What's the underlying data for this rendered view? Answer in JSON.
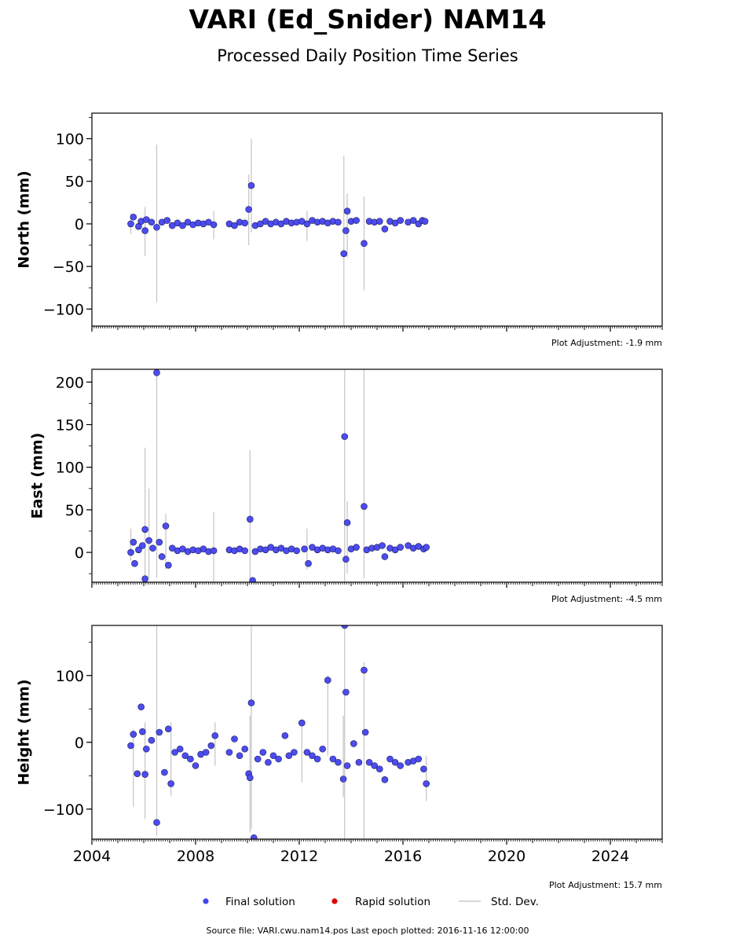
{
  "title": "VARI (Ed_Snider) NAM14",
  "subtitle": "Processed Daily Position Time Series",
  "footer": "Source file: VARI.cwu.nam14.pos  Last epoch plotted: 2016-11-16 12:00:00",
  "legend": {
    "placement": "bottom-center",
    "items": [
      {
        "label": "Final solution",
        "color": "#4444ee",
        "kind": "marker"
      },
      {
        "label": "Rapid solution",
        "color": "#dd0000",
        "kind": "marker"
      },
      {
        "label": "Std. Dev.",
        "color": "#cccccc",
        "kind": "line"
      }
    ]
  },
  "colors": {
    "final": "#4c4cf0",
    "edge": "#1a1a55",
    "stddev": "#c8c8c8"
  },
  "chart_data": [
    {
      "type": "scatter",
      "ylabel": "North (mm)",
      "xlim": [
        2004,
        2026
      ],
      "ylim": [
        -120,
        130
      ],
      "yticks": [
        100,
        50,
        0,
        -50,
        -100
      ],
      "note": "Plot Adjustment: -1.9 mm",
      "xtick_labels_shown": false,
      "series": [
        {
          "name": "Final solution",
          "points": [
            [
              2005.5,
              0
            ],
            [
              2005.6,
              8
            ],
            [
              2005.8,
              -3
            ],
            [
              2005.9,
              3
            ],
            [
              2006.05,
              -8
            ],
            [
              2006.1,
              5
            ],
            [
              2006.3,
              2
            ],
            [
              2006.5,
              -4
            ],
            [
              2006.7,
              2
            ],
            [
              2006.9,
              4
            ],
            [
              2007.1,
              -2
            ],
            [
              2007.3,
              1
            ],
            [
              2007.5,
              -2
            ],
            [
              2007.7,
              2
            ],
            [
              2007.9,
              -1
            ],
            [
              2008.1,
              1
            ],
            [
              2008.3,
              0
            ],
            [
              2008.5,
              2
            ],
            [
              2008.7,
              -1
            ],
            [
              2009.3,
              0
            ],
            [
              2009.5,
              -2
            ],
            [
              2009.7,
              2
            ],
            [
              2009.9,
              1
            ],
            [
              2010.05,
              17
            ],
            [
              2010.15,
              45
            ],
            [
              2010.3,
              -2
            ],
            [
              2010.5,
              0
            ],
            [
              2010.7,
              3
            ],
            [
              2010.9,
              0
            ],
            [
              2011.1,
              2
            ],
            [
              2011.3,
              0
            ],
            [
              2011.5,
              3
            ],
            [
              2011.7,
              1
            ],
            [
              2011.9,
              2
            ],
            [
              2012.1,
              3
            ],
            [
              2012.3,
              0
            ],
            [
              2012.5,
              4
            ],
            [
              2012.7,
              2
            ],
            [
              2012.9,
              3
            ],
            [
              2013.1,
              1
            ],
            [
              2013.3,
              3
            ],
            [
              2013.5,
              2
            ],
            [
              2013.72,
              -35
            ],
            [
              2013.8,
              -8
            ],
            [
              2013.85,
              15
            ],
            [
              2014.0,
              3
            ],
            [
              2014.2,
              4
            ],
            [
              2014.5,
              -23
            ],
            [
              2014.7,
              3
            ],
            [
              2014.9,
              2
            ],
            [
              2015.1,
              3
            ],
            [
              2015.3,
              -6
            ],
            [
              2015.5,
              3
            ],
            [
              2015.7,
              1
            ],
            [
              2015.9,
              4
            ],
            [
              2016.2,
              2
            ],
            [
              2016.4,
              4
            ],
            [
              2016.6,
              0
            ],
            [
              2016.75,
              4
            ],
            [
              2016.85,
              3
            ]
          ]
        }
      ],
      "stddev_bars": [
        [
          2005.5,
          -12,
          12
        ],
        [
          2006.05,
          -38,
          20
        ],
        [
          2006.5,
          -92,
          93
        ],
        [
          2008.7,
          -18,
          15
        ],
        [
          2010.05,
          -25,
          58
        ],
        [
          2010.15,
          -10,
          100
        ],
        [
          2012.3,
          -20,
          15
        ],
        [
          2013.72,
          -120,
          80
        ],
        [
          2013.85,
          -40,
          36
        ],
        [
          2014.5,
          -78,
          32
        ]
      ]
    },
    {
      "type": "scatter",
      "ylabel": "East (mm)",
      "xlim": [
        2004,
        2026
      ],
      "ylim": [
        -35,
        215
      ],
      "yticks": [
        200,
        150,
        100,
        50,
        0
      ],
      "note": "Plot Adjustment: -4.5 mm",
      "xtick_labels_shown": false,
      "series": [
        {
          "name": "Final solution",
          "points": [
            [
              2005.5,
              0
            ],
            [
              2005.6,
              12
            ],
            [
              2005.65,
              -13
            ],
            [
              2005.8,
              3
            ],
            [
              2005.95,
              8
            ],
            [
              2006.05,
              27
            ],
            [
              2006.05,
              -31
            ],
            [
              2006.2,
              14
            ],
            [
              2006.35,
              5
            ],
            [
              2006.5,
              211
            ],
            [
              2006.6,
              12
            ],
            [
              2006.7,
              -5
            ],
            [
              2006.85,
              31
            ],
            [
              2006.95,
              -15
            ],
            [
              2007.1,
              5
            ],
            [
              2007.3,
              2
            ],
            [
              2007.5,
              4
            ],
            [
              2007.7,
              1
            ],
            [
              2007.9,
              3
            ],
            [
              2008.1,
              2
            ],
            [
              2008.3,
              4
            ],
            [
              2008.5,
              1
            ],
            [
              2008.7,
              2
            ],
            [
              2009.3,
              3
            ],
            [
              2009.5,
              2
            ],
            [
              2009.7,
              4
            ],
            [
              2009.9,
              2
            ],
            [
              2010.1,
              39
            ],
            [
              2010.2,
              -33
            ],
            [
              2010.3,
              1
            ],
            [
              2010.5,
              4
            ],
            [
              2010.7,
              3
            ],
            [
              2010.9,
              6
            ],
            [
              2011.1,
              3
            ],
            [
              2011.3,
              5
            ],
            [
              2011.5,
              2
            ],
            [
              2011.7,
              4
            ],
            [
              2011.9,
              2
            ],
            [
              2012.2,
              4
            ],
            [
              2012.35,
              -13
            ],
            [
              2012.5,
              6
            ],
            [
              2012.7,
              3
            ],
            [
              2012.9,
              5
            ],
            [
              2013.1,
              3
            ],
            [
              2013.3,
              4
            ],
            [
              2013.5,
              2
            ],
            [
              2013.75,
              136
            ],
            [
              2013.8,
              -8
            ],
            [
              2013.85,
              35
            ],
            [
              2014.0,
              4
            ],
            [
              2014.2,
              6
            ],
            [
              2014.5,
              54
            ],
            [
              2014.6,
              3
            ],
            [
              2014.8,
              5
            ],
            [
              2015.0,
              6
            ],
            [
              2015.2,
              8
            ],
            [
              2015.3,
              -5
            ],
            [
              2015.5,
              5
            ],
            [
              2015.7,
              3
            ],
            [
              2015.9,
              6
            ],
            [
              2016.2,
              8
            ],
            [
              2016.4,
              5
            ],
            [
              2016.6,
              7
            ],
            [
              2016.8,
              4
            ],
            [
              2016.9,
              6
            ]
          ]
        }
      ],
      "stddev_bars": [
        [
          2005.5,
          -10,
          28
        ],
        [
          2006.05,
          -35,
          123
        ],
        [
          2006.2,
          -30,
          75
        ],
        [
          2006.5,
          -30,
          215
        ],
        [
          2006.85,
          -20,
          45
        ],
        [
          2008.7,
          -35,
          47
        ],
        [
          2010.1,
          -30,
          120
        ],
        [
          2012.3,
          -20,
          28
        ],
        [
          2013.75,
          -35,
          215
        ],
        [
          2013.85,
          -25,
          60
        ],
        [
          2014.5,
          -30,
          215
        ]
      ]
    },
    {
      "type": "scatter",
      "ylabel": "Height (mm)",
      "xlim": [
        2004,
        2026
      ],
      "ylim": [
        -145,
        175
      ],
      "yticks": [
        100,
        0,
        -100
      ],
      "xticks": [
        2004,
        2008,
        2012,
        2016,
        2020,
        2024
      ],
      "note": "Plot Adjustment: 15.7 mm",
      "xtick_labels_shown": true,
      "series": [
        {
          "name": "Final solution",
          "points": [
            [
              2005.5,
              -5
            ],
            [
              2005.6,
              12
            ],
            [
              2005.75,
              -47
            ],
            [
              2005.9,
              53
            ],
            [
              2005.95,
              16
            ],
            [
              2006.05,
              -48
            ],
            [
              2006.1,
              -10
            ],
            [
              2006.3,
              3
            ],
            [
              2006.5,
              -120
            ],
            [
              2006.6,
              15
            ],
            [
              2006.8,
              -45
            ],
            [
              2006.95,
              20
            ],
            [
              2007.05,
              -62
            ],
            [
              2007.2,
              -15
            ],
            [
              2007.4,
              -10
            ],
            [
              2007.6,
              -20
            ],
            [
              2007.8,
              -25
            ],
            [
              2008.0,
              -35
            ],
            [
              2008.2,
              -18
            ],
            [
              2008.4,
              -15
            ],
            [
              2008.6,
              -5
            ],
            [
              2008.75,
              10
            ],
            [
              2009.3,
              -15
            ],
            [
              2009.5,
              5
            ],
            [
              2009.7,
              -20
            ],
            [
              2009.9,
              -10
            ],
            [
              2010.05,
              -47
            ],
            [
              2010.1,
              -53
            ],
            [
              2010.15,
              59
            ],
            [
              2010.25,
              -143
            ],
            [
              2010.4,
              -25
            ],
            [
              2010.6,
              -15
            ],
            [
              2010.8,
              -30
            ],
            [
              2011.0,
              -20
            ],
            [
              2011.2,
              -25
            ],
            [
              2011.45,
              10
            ],
            [
              2011.6,
              -20
            ],
            [
              2011.8,
              -15
            ],
            [
              2012.1,
              29
            ],
            [
              2012.3,
              -15
            ],
            [
              2012.5,
              -20
            ],
            [
              2012.7,
              -25
            ],
            [
              2012.9,
              -10
            ],
            [
              2013.1,
              93
            ],
            [
              2013.3,
              -25
            ],
            [
              2013.5,
              -30
            ],
            [
              2013.7,
              -55
            ],
            [
              2013.75,
              175
            ],
            [
              2013.8,
              75
            ],
            [
              2013.85,
              -35
            ],
            [
              2014.1,
              -2
            ],
            [
              2014.3,
              -30
            ],
            [
              2014.5,
              108
            ],
            [
              2014.55,
              15
            ],
            [
              2014.7,
              -30
            ],
            [
              2014.9,
              -35
            ],
            [
              2015.1,
              -40
            ],
            [
              2015.3,
              -56
            ],
            [
              2015.5,
              -25
            ],
            [
              2015.7,
              -30
            ],
            [
              2015.9,
              -35
            ],
            [
              2016.2,
              -30
            ],
            [
              2016.4,
              -28
            ],
            [
              2016.6,
              -25
            ],
            [
              2016.8,
              -40
            ],
            [
              2016.9,
              -62
            ]
          ]
        }
      ],
      "stddev_bars": [
        [
          2005.6,
          -97,
          20
        ],
        [
          2006.05,
          -115,
          30
        ],
        [
          2006.5,
          -140,
          175
        ],
        [
          2007.05,
          -80,
          30
        ],
        [
          2008.75,
          -35,
          30
        ],
        [
          2010.1,
          -135,
          40
        ],
        [
          2010.15,
          -130,
          175
        ],
        [
          2012.1,
          -60,
          32
        ],
        [
          2013.1,
          -20,
          100
        ],
        [
          2013.7,
          -82,
          40
        ],
        [
          2013.75,
          -145,
          175
        ],
        [
          2014.5,
          -145,
          120
        ],
        [
          2016.9,
          -88,
          -20
        ]
      ]
    }
  ]
}
